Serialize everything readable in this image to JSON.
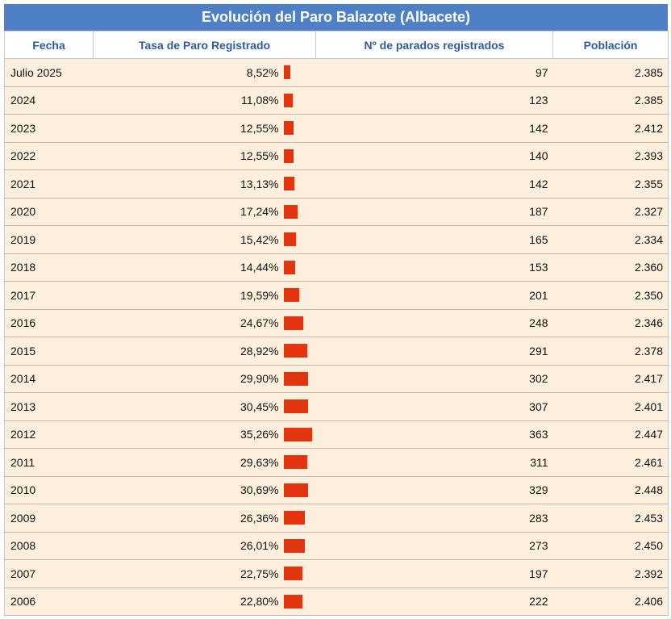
{
  "title": "Evolución del Paro Balazote (Albacete)",
  "columns": {
    "fecha": "Fecha",
    "tasa": "Tasa de Paro Registrado",
    "parados": "Nº de parados registrados",
    "poblacion": "Población"
  },
  "colors": {
    "header_bg": "#4d80c4",
    "header_text": "#2d5c9a",
    "row_bg": "#fdefde",
    "bar": "#e1340f"
  },
  "chart_data": {
    "type": "table",
    "rows": [
      {
        "fecha": "Julio 2025",
        "tasa": "8,52%",
        "tasa_value": 8.52,
        "parados": "97",
        "poblacion": "2.385"
      },
      {
        "fecha": "2024",
        "tasa": "11,08%",
        "tasa_value": 11.08,
        "parados": "123",
        "poblacion": "2.385"
      },
      {
        "fecha": "2023",
        "tasa": "12,55%",
        "tasa_value": 12.55,
        "parados": "142",
        "poblacion": "2.412"
      },
      {
        "fecha": "2022",
        "tasa": "12,55%",
        "tasa_value": 12.55,
        "parados": "140",
        "poblacion": "2.393"
      },
      {
        "fecha": "2021",
        "tasa": "13,13%",
        "tasa_value": 13.13,
        "parados": "142",
        "poblacion": "2.355"
      },
      {
        "fecha": "2020",
        "tasa": "17,24%",
        "tasa_value": 17.24,
        "parados": "187",
        "poblacion": "2.327"
      },
      {
        "fecha": "2019",
        "tasa": "15,42%",
        "tasa_value": 15.42,
        "parados": "165",
        "poblacion": "2.334"
      },
      {
        "fecha": "2018",
        "tasa": "14,44%",
        "tasa_value": 14.44,
        "parados": "153",
        "poblacion": "2.360"
      },
      {
        "fecha": "2017",
        "tasa": "19,59%",
        "tasa_value": 19.59,
        "parados": "201",
        "poblacion": "2.350"
      },
      {
        "fecha": "2016",
        "tasa": "24,67%",
        "tasa_value": 24.67,
        "parados": "248",
        "poblacion": "2.346"
      },
      {
        "fecha": "2015",
        "tasa": "28,92%",
        "tasa_value": 28.92,
        "parados": "291",
        "poblacion": "2.378"
      },
      {
        "fecha": "2014",
        "tasa": "29,90%",
        "tasa_value": 29.9,
        "parados": "302",
        "poblacion": "2.417"
      },
      {
        "fecha": "2013",
        "tasa": "30,45%",
        "tasa_value": 30.45,
        "parados": "307",
        "poblacion": "2.401"
      },
      {
        "fecha": "2012",
        "tasa": "35,26%",
        "tasa_value": 35.26,
        "parados": "363",
        "poblacion": "2.447"
      },
      {
        "fecha": "2011",
        "tasa": "29,63%",
        "tasa_value": 29.63,
        "parados": "311",
        "poblacion": "2.461"
      },
      {
        "fecha": "2010",
        "tasa": "30,69%",
        "tasa_value": 30.69,
        "parados": "329",
        "poblacion": "2.448"
      },
      {
        "fecha": "2009",
        "tasa": "26,36%",
        "tasa_value": 26.36,
        "parados": "283",
        "poblacion": "2.453"
      },
      {
        "fecha": "2008",
        "tasa": "26,01%",
        "tasa_value": 26.01,
        "parados": "273",
        "poblacion": "2.450"
      },
      {
        "fecha": "2007",
        "tasa": "22,75%",
        "tasa_value": 22.75,
        "parados": "197",
        "poblacion": "2.392"
      },
      {
        "fecha": "2006",
        "tasa": "22,80%",
        "tasa_value": 22.8,
        "parados": "222",
        "poblacion": "2.406"
      }
    ]
  }
}
